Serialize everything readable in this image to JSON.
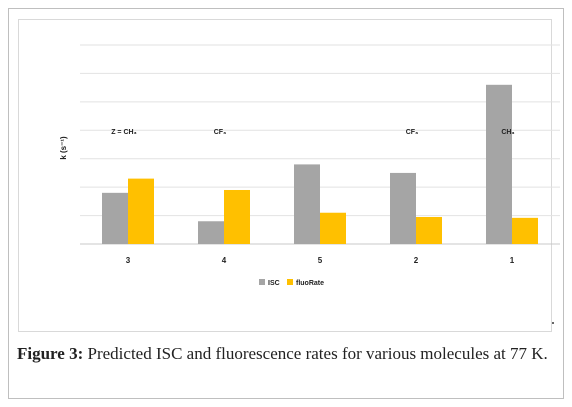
{
  "chart_data": {
    "type": "bar",
    "categories": [
      "3",
      "4",
      "5",
      "2",
      "1"
    ],
    "series": [
      {
        "name": "ISC",
        "color": "#a5a5a5",
        "values": [
          1.8,
          0.8,
          2.8,
          2.5,
          5.6
        ]
      },
      {
        "name": "fluoRate",
        "color": "#ffc000",
        "values": [
          2.3,
          1.9,
          1.1,
          0.95,
          0.92
        ]
      }
    ],
    "ylabel": "k (s⁻¹)",
    "ylim": [
      0,
      7
    ],
    "grid": true,
    "legend_position": "bottom",
    "annotations": [
      {
        "category": "3",
        "text": "Z = CH₃"
      },
      {
        "category": "4",
        "text": "CF₃"
      },
      {
        "category": "2",
        "text": "CF₃"
      },
      {
        "category": "1",
        "text": "CH₃"
      }
    ]
  },
  "caption": {
    "label": "Figure 3:",
    "text": " Predicted ISC and fluorescence rates for various molecules at 77 K."
  }
}
